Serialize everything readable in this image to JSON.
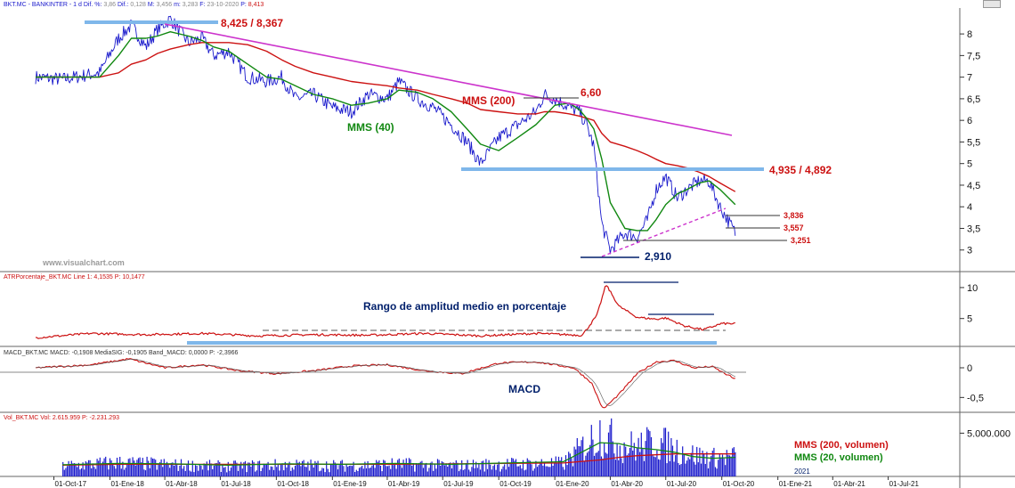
{
  "header": {
    "main_label": "BKT.MC - BANKINTER - 1 d Dif. %: ",
    "dif_pct": "3,86",
    "dif_label": " Dif.: ",
    "dif": "0,128",
    "m_label": " M: ",
    "m": "3,456",
    "min_label": " m: ",
    "min": "3,283",
    "date_label": " F: ",
    "date": "23-10-2020",
    "p_label": " P: ",
    "p": "8,413",
    "atr": "ATRPorcentaje_BKT.MC Line 1: 4,1535  P: 10,1477",
    "macd": "MACD_BKT.MC MACD: -0,1908 MediaSIG: -0,1905 Band_MACD: 0,0000  P: -2,3966",
    "vol": "Vol_BKT.MC  Vol: 2.615.959  P: -2.231.293"
  },
  "watermark": "www.visualchart.com",
  "colors": {
    "price": "#1a1acc",
    "mms200": "#cc1111",
    "mms40": "#118811",
    "trend": "#cc33cc",
    "level": "#7fb7ea",
    "red_text": "#cc1111",
    "navy": "#001f6b"
  },
  "annotations": {
    "top": "8,425 / 8,367",
    "mms200": "MMS (200)",
    "peak": "6,60",
    "mms40": "MMS (40)",
    "level": "4,935 / 4,892",
    "r1": "3,836",
    "r2": "3,557",
    "r3": "3,251",
    "bottom": "2,910",
    "atr_title": "Rango de amplitud medio en porcentaje",
    "macd_title": "MACD",
    "vol_mms200": "MMS (200, volumen)",
    "vol_mms20": "MMS (20, volumen)",
    "year": "2021"
  },
  "chart_data": [
    {
      "type": "line",
      "name": "price",
      "ylim": [
        2.5,
        8.6
      ],
      "yticks": [
        "8",
        "7,5",
        "7",
        "6,5",
        "6",
        "5,5",
        "5",
        "4,5",
        "4",
        "3,5",
        "3"
      ],
      "xticks": [
        "01-Oct-17",
        "01-Ene-18",
        "01-Abr-18",
        "01-Jul-18",
        "01-Oct-18",
        "01-Ene-19",
        "01-Abr-19",
        "01-Jul-19",
        "01-Oct-19",
        "01-Ene-20",
        "01-Abr-20",
        "01-Jul-20",
        "01-Oct-20",
        "01-Ene-21",
        "01-Abr-21",
        "01-Jul-21"
      ],
      "x": [
        "2017-09-01",
        "2017-10-15",
        "2017-12-15",
        "2018-01-15",
        "2018-02-05",
        "2018-03-01",
        "2018-03-20",
        "2018-04-10",
        "2018-05-10",
        "2018-06-01",
        "2018-06-20",
        "2018-07-15",
        "2018-08-15",
        "2018-09-15",
        "2018-10-10",
        "2018-11-01",
        "2018-12-01",
        "2019-01-01",
        "2019-02-01",
        "2019-03-01",
        "2019-04-01",
        "2019-04-20",
        "2019-05-20",
        "2019-06-15",
        "2019-07-15",
        "2019-08-10",
        "2019-09-01",
        "2019-10-01",
        "2019-11-01",
        "2019-12-01",
        "2019-12-15",
        "2020-01-01",
        "2020-01-25",
        "2020-02-10",
        "2020-02-22",
        "2020-03-05",
        "2020-03-18",
        "2020-04-01",
        "2020-04-25",
        "2020-05-15",
        "2020-06-01",
        "2020-06-15",
        "2020-07-01",
        "2020-07-20",
        "2020-08-05",
        "2020-08-25",
        "2020-09-10",
        "2020-09-28",
        "2020-10-23"
      ],
      "series": [
        {
          "name": "BKT.MC",
          "values": [
            7.0,
            6.95,
            7.1,
            7.9,
            8.2,
            7.7,
            8.1,
            8.35,
            7.8,
            7.9,
            7.5,
            7.6,
            7.0,
            6.9,
            7.0,
            6.5,
            6.6,
            6.3,
            6.2,
            6.6,
            6.5,
            6.9,
            6.5,
            6.3,
            5.9,
            5.5,
            5.0,
            5.6,
            5.9,
            6.2,
            6.6,
            6.5,
            6.3,
            6.2,
            5.9,
            5.4,
            3.6,
            3.0,
            3.4,
            3.3,
            3.7,
            4.4,
            4.7,
            4.2,
            4.4,
            4.6,
            4.6,
            4.0,
            3.4
          ]
        },
        {
          "name": "MMS (40)",
          "values": [
            7.0,
            7.0,
            7.0,
            7.5,
            7.9,
            7.9,
            7.95,
            8.05,
            7.95,
            7.85,
            7.7,
            7.6,
            7.3,
            7.0,
            6.95,
            6.8,
            6.6,
            6.5,
            6.35,
            6.4,
            6.5,
            6.7,
            6.65,
            6.5,
            6.2,
            5.8,
            5.45,
            5.3,
            5.6,
            5.9,
            6.1,
            6.35,
            6.4,
            6.25,
            6.05,
            5.8,
            5.1,
            4.1,
            3.5,
            3.45,
            3.45,
            3.7,
            4.05,
            4.3,
            4.4,
            4.55,
            4.6,
            4.4,
            4.05
          ]
        },
        {
          "name": "MMS (200)",
          "values": [
            7.0,
            7.0,
            7.0,
            7.1,
            7.3,
            7.4,
            7.55,
            7.65,
            7.75,
            7.8,
            7.8,
            7.8,
            7.75,
            7.6,
            7.4,
            7.25,
            7.1,
            7.0,
            6.9,
            6.85,
            6.8,
            6.75,
            6.7,
            6.6,
            6.5,
            6.4,
            6.25,
            6.2,
            6.15,
            6.15,
            6.2,
            6.2,
            6.15,
            6.1,
            6.05,
            6.0,
            5.7,
            5.5,
            5.4,
            5.3,
            5.2,
            5.1,
            5.0,
            4.95,
            4.9,
            4.8,
            4.7,
            4.55,
            4.35
          ]
        }
      ]
    },
    {
      "type": "line",
      "name": "ATRPorcentaje",
      "ylim": [
        0.5,
        12
      ],
      "yticks": [
        "10",
        "5"
      ],
      "x": [
        "2017-09-01",
        "2017-12-01",
        "2018-03-01",
        "2018-06-01",
        "2018-09-01",
        "2018-12-01",
        "2019-03-01",
        "2019-06-01",
        "2019-09-01",
        "2019-12-01",
        "2020-02-15",
        "2020-03-10",
        "2020-03-25",
        "2020-04-15",
        "2020-05-15",
        "2020-06-15",
        "2020-07-01",
        "2020-08-01",
        "2020-09-01",
        "2020-10-01",
        "2020-10-23"
      ],
      "series": [
        {
          "name": "ATRPorcentaje_BKT.MC",
          "values": [
            1.9,
            2.6,
            2.4,
            2.6,
            2.2,
            2.4,
            2.3,
            2.6,
            2.2,
            2.6,
            2.3,
            5.5,
            10.5,
            7.0,
            5.2,
            4.9,
            5.1,
            3.8,
            3.2,
            4.2,
            4.15
          ]
        }
      ]
    },
    {
      "type": "line",
      "name": "MACD",
      "ylim": [
        -0.75,
        0.3
      ],
      "yticks": [
        "0",
        "-0,5"
      ],
      "x": [
        "2017-09-01",
        "2017-12-01",
        "2018-02-01",
        "2018-04-01",
        "2018-06-01",
        "2018-08-01",
        "2018-10-01",
        "2018-12-01",
        "2019-02-01",
        "2019-04-01",
        "2019-06-01",
        "2019-08-01",
        "2019-10-01",
        "2019-12-01",
        "2020-02-01",
        "2020-03-01",
        "2020-03-20",
        "2020-04-15",
        "2020-05-15",
        "2020-06-15",
        "2020-07-15",
        "2020-08-15",
        "2020-09-15",
        "2020-10-23"
      ],
      "series": [
        {
          "name": "MACD",
          "values": [
            0.0,
            0.05,
            0.15,
            0.0,
            0.05,
            -0.05,
            -0.1,
            -0.05,
            0.03,
            0.05,
            -0.05,
            -0.1,
            0.08,
            0.1,
            0.0,
            -0.25,
            -0.7,
            -0.45,
            -0.1,
            0.1,
            0.12,
            0.0,
            0.02,
            -0.19
          ]
        }
      ]
    },
    {
      "type": "bar",
      "name": "Volumen",
      "ylim": [
        0,
        7000000
      ],
      "yticks": [
        "5.000.000"
      ],
      "x": [
        "2017-10-15",
        "2018-01-15",
        "2018-04-15",
        "2018-07-15",
        "2018-10-15",
        "2019-01-15",
        "2019-04-15",
        "2019-07-15",
        "2019-10-15",
        "2020-01-15",
        "2020-03-15",
        "2020-04-15",
        "2020-05-15",
        "2020-06-15",
        "2020-07-15",
        "2020-08-15",
        "2020-09-15",
        "2020-10-23"
      ],
      "values": [
        1400000,
        1800000,
        1500000,
        1300000,
        1500000,
        1400000,
        1600000,
        1400000,
        1600000,
        1700000,
        5800000,
        4200000,
        3800000,
        4600000,
        3600000,
        2800000,
        2400000,
        2615959
      ],
      "series": [
        {
          "name": "MMS (200, volumen)",
          "values": [
            1300000,
            1400000,
            1400000,
            1400000,
            1400000,
            1400000,
            1400000,
            1450000,
            1500000,
            1550000,
            1900000,
            2200000,
            2400000,
            2500000,
            2600000,
            2600000,
            2600000,
            2600000
          ]
        },
        {
          "name": "MMS (20, volumen)",
          "values": [
            1350000,
            1500000,
            1450000,
            1300000,
            1450000,
            1400000,
            1500000,
            1400000,
            1550000,
            1700000,
            3900000,
            3800000,
            3300000,
            3100000,
            2800000,
            2300000,
            2100000,
            2200000
          ]
        }
      ]
    }
  ]
}
